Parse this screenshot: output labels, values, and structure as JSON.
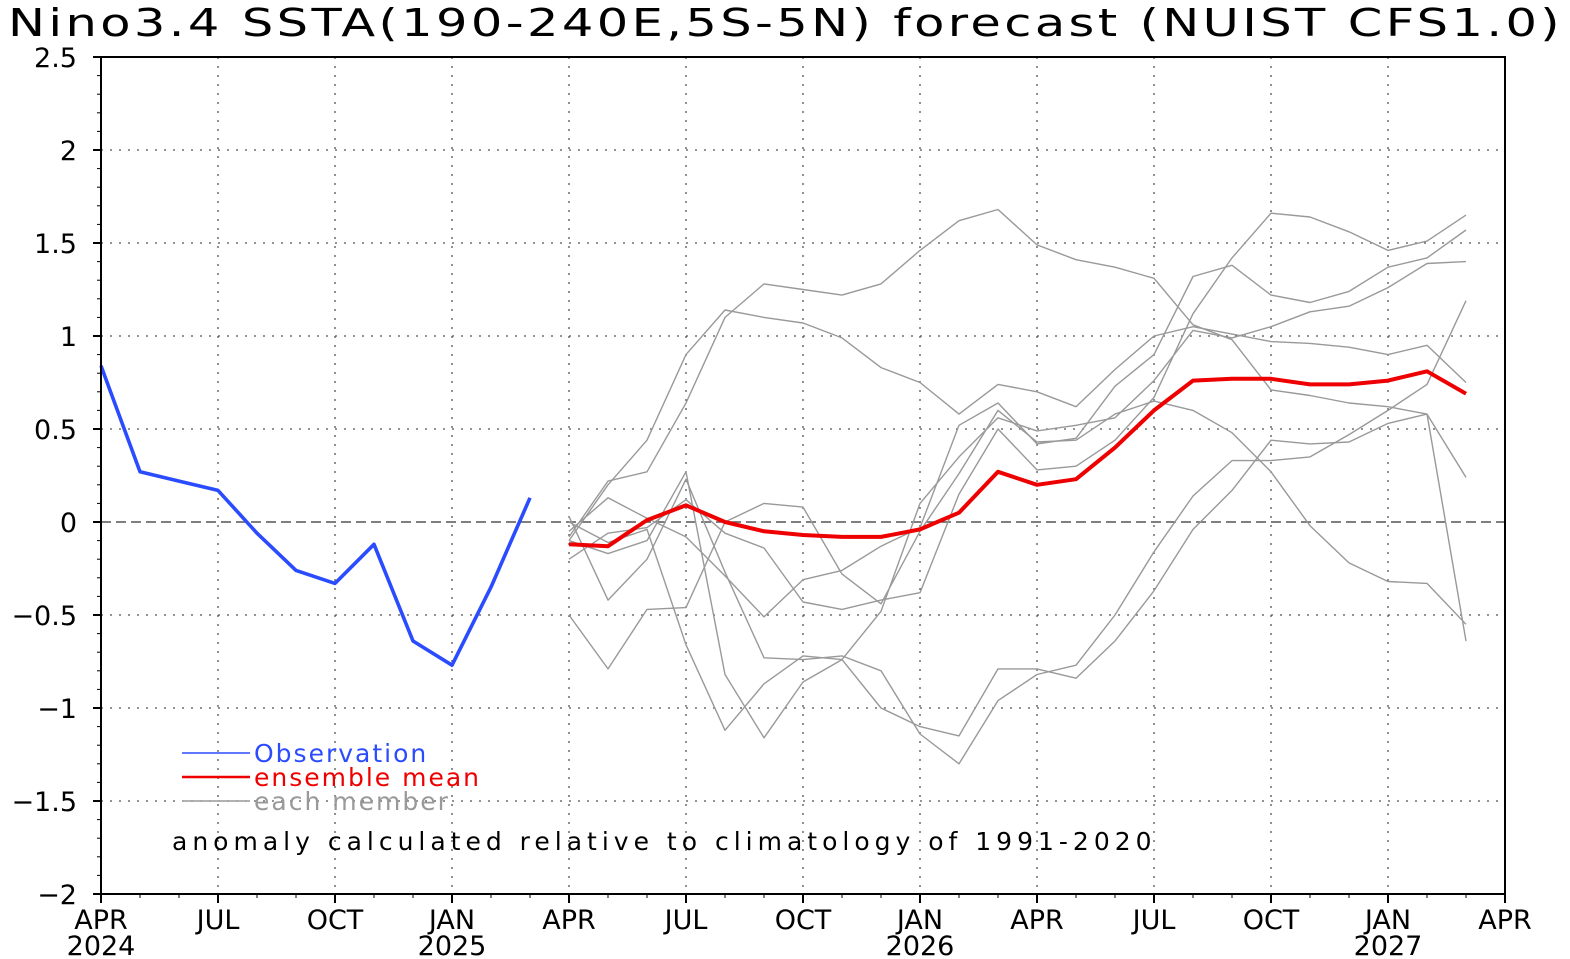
{
  "chart_data": {
    "type": "line",
    "title": "Nino3.4 SSTA(190-240E,5S-5N) forecast (NUIST CFS1.0)",
    "note": "anomaly calculated relative to climatology of 1991-2020",
    "x_unit": "month index from APR 2024",
    "xlim": [
      0,
      36
    ],
    "ylim": [
      -2,
      2.5
    ],
    "yticks": [
      {
        "v": 2.5,
        "label": "2.5"
      },
      {
        "v": 2,
        "label": "2"
      },
      {
        "v": 1.5,
        "label": "1.5"
      },
      {
        "v": 1,
        "label": "1"
      },
      {
        "v": 0.5,
        "label": "0.5"
      },
      {
        "v": 0,
        "label": "0"
      },
      {
        "v": -0.5,
        "label": "−0.5"
      },
      {
        "v": -1,
        "label": "−1"
      },
      {
        "v": -1.5,
        "label": "−1.5"
      },
      {
        "v": -2,
        "label": "−2"
      }
    ],
    "xticks": [
      {
        "m": 0,
        "label": "APR",
        "year": "2024"
      },
      {
        "m": 3,
        "label": "JUL",
        "year": ""
      },
      {
        "m": 6,
        "label": "OCT",
        "year": ""
      },
      {
        "m": 9,
        "label": "JAN",
        "year": "2025"
      },
      {
        "m": 12,
        "label": "APR",
        "year": ""
      },
      {
        "m": 15,
        "label": "JUL",
        "year": ""
      },
      {
        "m": 18,
        "label": "OCT",
        "year": ""
      },
      {
        "m": 21,
        "label": "JAN",
        "year": "2026"
      },
      {
        "m": 24,
        "label": "APR",
        "year": ""
      },
      {
        "m": 27,
        "label": "JUL",
        "year": ""
      },
      {
        "m": 30,
        "label": "OCT",
        "year": ""
      },
      {
        "m": 33,
        "label": "JAN",
        "year": "2027"
      },
      {
        "m": 36,
        "label": "APR",
        "year": ""
      }
    ],
    "grid": true,
    "legend": [
      {
        "label": "Observation",
        "color": "#2b4bff"
      },
      {
        "label": "ensemble mean",
        "color": "#ee0000"
      },
      {
        "label": "each member",
        "color": "#999999"
      }
    ],
    "observation": {
      "name": "Observation",
      "color": "#2b4bff",
      "x": [
        0,
        1,
        2,
        3,
        4,
        5,
        6,
        7,
        8,
        9,
        10,
        11
      ],
      "y": [
        0.84,
        0.27,
        0.22,
        0.17,
        -0.06,
        -0.26,
        -0.33,
        -0.12,
        -0.64,
        -0.77,
        -0.35,
        0.13
      ]
    },
    "ensemble_mean": {
      "name": "ensemble mean",
      "color": "#ee0000",
      "x": [
        12,
        13,
        14,
        15,
        16,
        17,
        18,
        19,
        20,
        21,
        22,
        23,
        24,
        25,
        26,
        27,
        28,
        29,
        30,
        31,
        32,
        33,
        34,
        35
      ],
      "y": [
        -0.12,
        -0.13,
        0.01,
        0.09,
        0.0,
        -0.05,
        -0.07,
        -0.08,
        -0.08,
        -0.04,
        0.05,
        0.27,
        0.2,
        0.23,
        0.4,
        0.6,
        0.76,
        0.77,
        0.77,
        0.74,
        0.74,
        0.76,
        0.81,
        0.69
      ]
    },
    "members": {
      "name": "each member",
      "color": "#999999",
      "x": [
        12,
        13,
        14,
        15,
        16,
        17,
        18,
        19,
        20,
        21,
        22,
        23,
        24,
        25,
        26,
        27,
        28,
        29,
        30,
        31,
        32,
        33,
        34,
        35
      ],
      "series": [
        [
          -0.1,
          0.2,
          0.44,
          0.9,
          1.14,
          1.1,
          1.07,
          0.99,
          0.83,
          0.75,
          0.58,
          0.74,
          0.7,
          0.62,
          0.82,
          1.0,
          1.05,
          1.01,
          0.97,
          0.96,
          0.94,
          0.9,
          0.95,
          0.75
        ],
        [
          -0.08,
          0.22,
          0.27,
          0.64,
          1.1,
          1.28,
          1.25,
          1.22,
          1.28,
          1.46,
          1.62,
          1.68,
          1.49,
          1.41,
          1.37,
          1.31,
          1.06,
          0.98,
          0.71,
          0.68,
          0.64,
          0.62,
          0.58,
          0.24
        ],
        [
          -0.05,
          0.13,
          0.02,
          -0.08,
          -0.29,
          -0.51,
          -0.31,
          -0.26,
          -0.13,
          -0.03,
          0.52,
          0.64,
          0.42,
          0.45,
          0.73,
          0.9,
          1.32,
          1.38,
          1.22,
          1.18,
          1.24,
          1.37,
          1.42,
          1.57
        ],
        [
          -0.2,
          -0.06,
          -0.03,
          0.12,
          -0.06,
          -0.14,
          -0.43,
          -0.47,
          -0.42,
          -0.38,
          0.15,
          0.5,
          0.28,
          0.3,
          0.44,
          0.67,
          1.12,
          1.42,
          1.66,
          1.64,
          1.56,
          1.46,
          1.51,
          1.65
        ],
        [
          -0.5,
          -0.79,
          -0.47,
          -0.46,
          0.0,
          0.1,
          0.08,
          -0.28,
          -0.44,
          -0.05,
          0.26,
          0.6,
          0.43,
          0.44,
          0.58,
          0.65,
          0.6,
          0.48,
          0.27,
          -0.02,
          -0.22,
          -0.32,
          -0.33,
          -0.55
        ],
        [
          0.03,
          -0.42,
          -0.2,
          0.23,
          -0.27,
          -0.73,
          -0.74,
          -0.72,
          -0.8,
          -1.14,
          -1.3,
          -0.96,
          -0.82,
          -0.77,
          -0.5,
          -0.16,
          0.14,
          0.33,
          0.33,
          0.35,
          0.47,
          0.6,
          0.74,
          1.19
        ],
        [
          0.0,
          -0.11,
          -0.04,
          -0.66,
          -1.12,
          -0.87,
          -0.72,
          -0.74,
          -1.0,
          -1.1,
          -1.15,
          -0.79,
          -0.79,
          -0.84,
          -0.64,
          -0.37,
          -0.04,
          0.17,
          0.44,
          0.42,
          0.43,
          0.53,
          0.58,
          -0.64
        ],
        [
          -0.1,
          -0.17,
          -0.1,
          0.27,
          -0.82,
          -1.16,
          -0.86,
          -0.74,
          -0.48,
          0.1,
          0.35,
          0.56,
          0.49,
          0.52,
          0.56,
          0.76,
          1.03,
          0.99,
          1.05,
          1.13,
          1.16,
          1.26,
          1.39,
          1.4
        ]
      ]
    }
  }
}
